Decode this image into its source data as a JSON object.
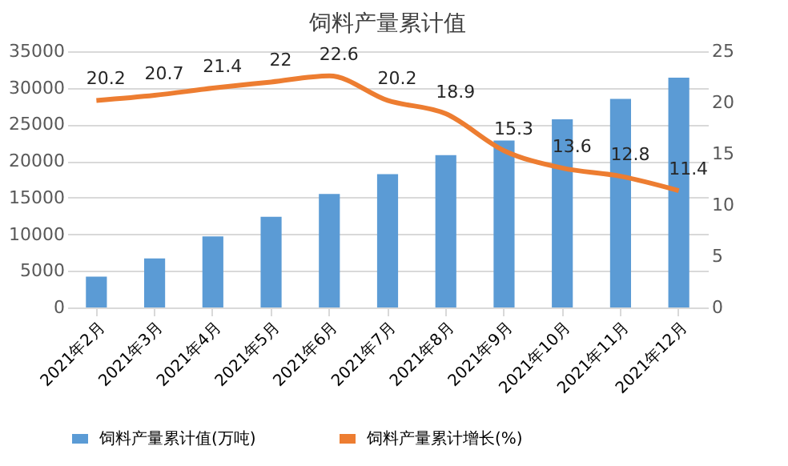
{
  "chart_data": {
    "type": "bar",
    "title": "饲料产量累计值",
    "categories": [
      "2021年2月",
      "2021年3月",
      "2021年4月",
      "2021年5月",
      "2021年6月",
      "2021年7月",
      "2021年8月",
      "2021年9月",
      "2021年10月",
      "2021年11月",
      "2021年12月"
    ],
    "series": [
      {
        "name": "饲料产量累计值(万吨)",
        "color": "#5b9bd5",
        "values": [
          4200,
          6700,
          9700,
          12400,
          15500,
          18200,
          20800,
          22800,
          25700,
          28500,
          31400
        ]
      },
      {
        "name": "饲料产量累计增长(%)",
        "type": "line",
        "axis": "y2",
        "color": "#ed7d31",
        "values": [
          20.2,
          20.7,
          21.4,
          22,
          22.6,
          20.2,
          18.9,
          15.3,
          13.6,
          12.8,
          11.4
        ],
        "value_labels": [
          "20.2",
          "20.7",
          "21.4",
          "22",
          "22.6",
          "20.2",
          "18.9",
          "15.3",
          "13.6",
          "12.8",
          "11.4"
        ]
      }
    ],
    "ylim": [
      0,
      35000
    ],
    "yticks": [
      0,
      5000,
      10000,
      15000,
      20000,
      25000,
      30000,
      35000
    ],
    "y2lim": [
      0,
      25
    ],
    "y2ticks": [
      0,
      5,
      10,
      15,
      20,
      25
    ],
    "grid": "y",
    "legend": "bottom",
    "marker": "none"
  }
}
